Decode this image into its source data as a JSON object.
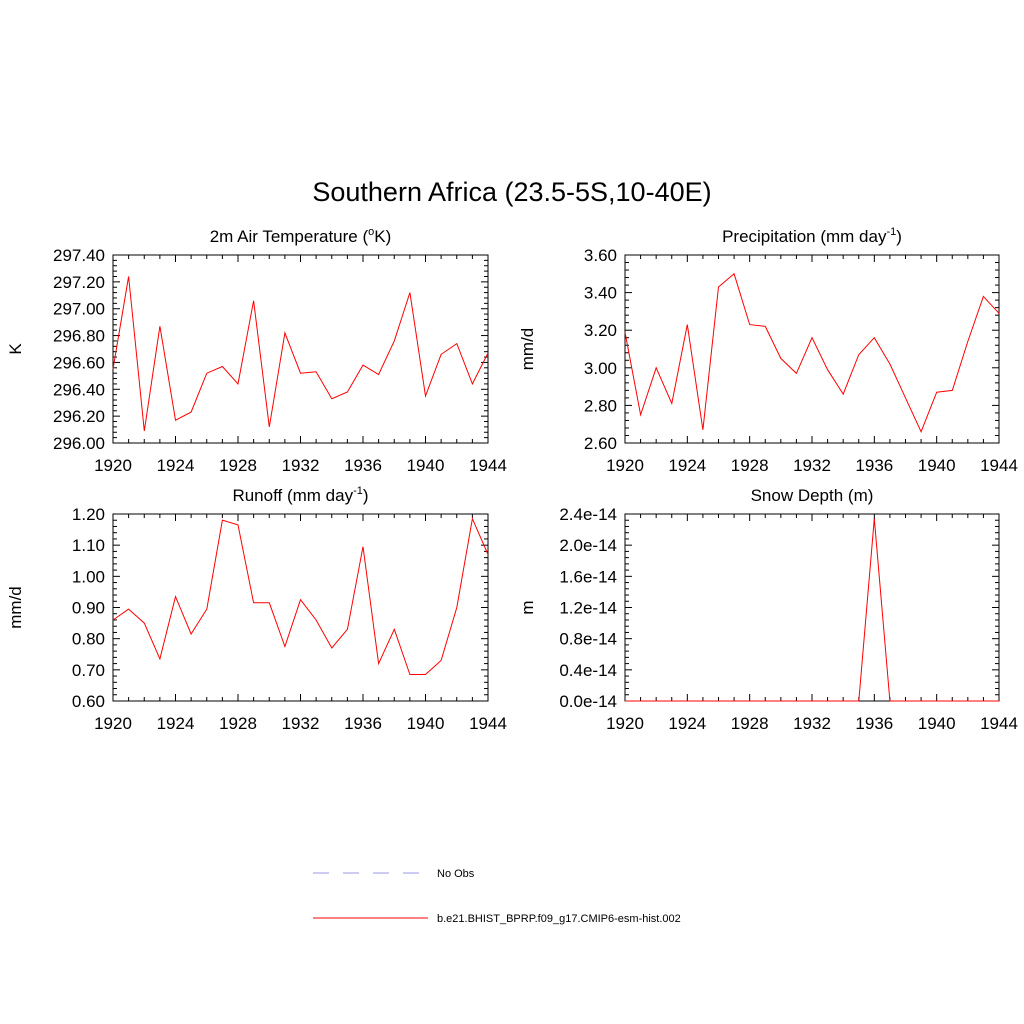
{
  "figure": {
    "title": "Southern Africa (23.5-5S,10-40E)"
  },
  "legend": {
    "entries": [
      {
        "label": "No Obs",
        "color": "#9a9ae6",
        "dash": true
      },
      {
        "label": "b.e21.BHIST_BPRP.f09_g17.CMIP6-esm-hist.002",
        "color": "#ff0000",
        "dash": false
      }
    ]
  },
  "chart_data": [
    {
      "type": "line",
      "title": "2m Air Temperature (",
      "title_super": "o",
      "title_after": "K)",
      "ylabel": "K",
      "xlim": [
        1920,
        1944
      ],
      "ylim": [
        296.0,
        297.4
      ],
      "xticks": [
        "1920",
        "1924",
        "1928",
        "1932",
        "1936",
        "1940",
        "1944"
      ],
      "yticks": [
        "296.00",
        "296.20",
        "296.40",
        "296.60",
        "296.80",
        "297.00",
        "297.20",
        "297.40"
      ],
      "series": [
        {
          "color": "#ff0000",
          "x": [
            1920,
            1921,
            1922,
            1923,
            1924,
            1925,
            1926,
            1927,
            1928,
            1929,
            1930,
            1931,
            1932,
            1933,
            1934,
            1935,
            1936,
            1937,
            1938,
            1939,
            1940,
            1941,
            1942,
            1943,
            1944
          ],
          "values": [
            296.55,
            297.24,
            296.09,
            296.87,
            296.17,
            296.23,
            296.52,
            296.57,
            296.44,
            297.06,
            296.12,
            296.82,
            296.52,
            296.53,
            296.33,
            296.38,
            296.58,
            296.51,
            296.76,
            297.12,
            296.35,
            296.66,
            296.74,
            296.44,
            296.67
          ]
        }
      ]
    },
    {
      "type": "line",
      "title": "Precipitation (mm day",
      "title_super": "-1",
      "title_after": ")",
      "ylabel": "mm/d",
      "xlim": [
        1920,
        1944
      ],
      "ylim": [
        2.6,
        3.6
      ],
      "xticks": [
        "1920",
        "1924",
        "1928",
        "1932",
        "1936",
        "1940",
        "1944"
      ],
      "yticks": [
        "2.60",
        "2.80",
        "3.00",
        "3.20",
        "3.40",
        "3.60"
      ],
      "series": [
        {
          "color": "#ff0000",
          "x": [
            1920,
            1921,
            1922,
            1923,
            1924,
            1925,
            1926,
            1927,
            1928,
            1929,
            1930,
            1931,
            1932,
            1933,
            1934,
            1935,
            1936,
            1937,
            1938,
            1939,
            1940,
            1941,
            1942,
            1943,
            1944
          ],
          "values": [
            3.19,
            2.75,
            3.0,
            2.81,
            3.23,
            2.67,
            3.43,
            3.5,
            3.23,
            3.22,
            3.05,
            2.97,
            3.16,
            2.99,
            2.86,
            3.07,
            3.16,
            3.02,
            2.84,
            2.66,
            2.87,
            2.88,
            3.14,
            3.38,
            3.29
          ]
        }
      ]
    },
    {
      "type": "line",
      "title": "Runoff (mm day",
      "title_super": "-1",
      "title_after": ")",
      "ylabel": "mm/d",
      "xlim": [
        1920,
        1944
      ],
      "ylim": [
        0.6,
        1.2
      ],
      "xticks": [
        "1920",
        "1924",
        "1928",
        "1932",
        "1936",
        "1940",
        "1944"
      ],
      "yticks": [
        "0.60",
        "0.70",
        "0.80",
        "0.90",
        "1.00",
        "1.10",
        "1.20"
      ],
      "series": [
        {
          "color": "#ff0000",
          "x": [
            1920,
            1921,
            1922,
            1923,
            1924,
            1925,
            1926,
            1927,
            1928,
            1929,
            1930,
            1931,
            1932,
            1933,
            1934,
            1935,
            1936,
            1937,
            1938,
            1939,
            1940,
            1941,
            1942,
            1943,
            1944
          ],
          "values": [
            0.86,
            0.895,
            0.85,
            0.735,
            0.935,
            0.815,
            0.895,
            1.18,
            1.165,
            0.915,
            0.915,
            0.775,
            0.925,
            0.86,
            0.77,
            0.83,
            1.095,
            0.72,
            0.83,
            0.685,
            0.685,
            0.73,
            0.9,
            1.185,
            1.07
          ]
        }
      ]
    },
    {
      "type": "line",
      "title": "Snow Depth (m)",
      "title_super": "",
      "title_after": "",
      "ylabel": "m",
      "xlim": [
        1920,
        1944
      ],
      "ylim": [
        0,
        2.4e-14
      ],
      "xticks": [
        "1920",
        "1924",
        "1928",
        "1932",
        "1936",
        "1940",
        "1944"
      ],
      "yticks": [
        "0.0e-14",
        "0.4e-14",
        "0.8e-14",
        "1.2e-14",
        "1.6e-14",
        "2.0e-14",
        "2.4e-14"
      ],
      "series": [
        {
          "color": "#ff0000",
          "x": [
            1920,
            1921,
            1922,
            1923,
            1924,
            1925,
            1926,
            1927,
            1928,
            1929,
            1930,
            1931,
            1932,
            1933,
            1934,
            1935,
            1936,
            1937,
            1938,
            1939,
            1940,
            1941,
            1942,
            1943,
            1944
          ],
          "values": [
            0,
            0,
            0,
            0,
            0,
            0,
            0,
            0,
            0,
            0,
            0,
            0,
            0,
            0,
            0,
            0,
            2.34e-14,
            0,
            0,
            0,
            0,
            0,
            0,
            0,
            0
          ]
        }
      ]
    }
  ]
}
